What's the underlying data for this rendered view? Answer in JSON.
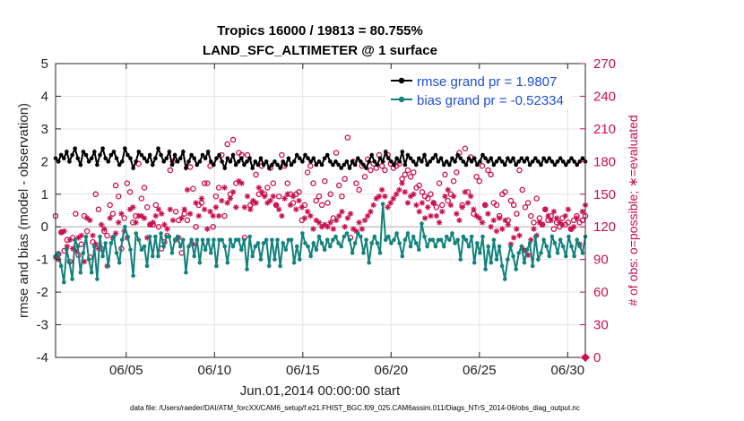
{
  "chart_data": {
    "type": "line",
    "title": "Tropics 16000 / 19813 = 80.755%",
    "subtitle": "LAND_SFC_ALTIMETER @ 1 surface",
    "xlabel": "Jun.01,2014 00:00:00 start",
    "ylabel": "rmse and bias (model - observation)",
    "y2label": "# of obs: o=possible; ∗=evaluated",
    "xlim": [
      1,
      31
    ],
    "ylim": [
      -4,
      5
    ],
    "y2lim": [
      0,
      270
    ],
    "x_ticks": [
      5,
      10,
      15,
      20,
      25,
      30
    ],
    "x_tick_labels": [
      "06/05",
      "06/10",
      "06/15",
      "06/20",
      "06/25",
      "06/30"
    ],
    "y_ticks": [
      -4,
      -3,
      -2,
      -1,
      0,
      1,
      2,
      3,
      4,
      5
    ],
    "y_tick_labels": [
      "-4",
      "-3",
      "-2",
      "-1",
      "0",
      "1",
      "2",
      "3",
      "4",
      "5"
    ],
    "y2_ticks": [
      0,
      30,
      60,
      90,
      120,
      150,
      180,
      210,
      240,
      270
    ],
    "y2_tick_labels": [
      "0",
      "30",
      "60",
      "90",
      "120",
      "150",
      "180",
      "210",
      "240",
      "270"
    ],
    "grid": true,
    "legend_position": "top-right",
    "series": [
      {
        "name": "rmse grand pr = 1.9807",
        "color": "#000000",
        "marker": "filled-circle",
        "axis": "left",
        "values": [
          2.1,
          2.0,
          2.2,
          2.1,
          2.3,
          2.0,
          2.2,
          2.4,
          2.1,
          1.9,
          2.3,
          2.2,
          2.0,
          2.1,
          2.3,
          1.9,
          2.2,
          2.4,
          2.1,
          2.0,
          2.2,
          2.3,
          2.1,
          1.9,
          2.0,
          2.4,
          2.2,
          2.1,
          1.8,
          2.0,
          2.3,
          2.2,
          2.1,
          2.0,
          2.2,
          1.9,
          2.1,
          2.4,
          2.2,
          2.0,
          2.1,
          2.3,
          1.9,
          2.2,
          2.0,
          2.1,
          2.3,
          1.8,
          2.0,
          2.2,
          2.1,
          1.9,
          2.0,
          2.2,
          2.1,
          2.3,
          2.0,
          1.9,
          2.1,
          2.2,
          2.0,
          1.8,
          2.1,
          2.0,
          2.2,
          1.9,
          2.0,
          2.1,
          1.9,
          2.0,
          2.1,
          1.8,
          2.0,
          1.9,
          2.1,
          1.9,
          2.0,
          1.8,
          1.9,
          2.0,
          1.9,
          1.8,
          2.0,
          1.9,
          2.1,
          1.9,
          2.0,
          2.2,
          2.1,
          2.0,
          2.2,
          2.1,
          2.0,
          2.1,
          1.9,
          2.0,
          1.9,
          2.1,
          2.2,
          2.0,
          1.9,
          2.0,
          1.9,
          1.8,
          1.9,
          2.0,
          1.8,
          2.0,
          1.9,
          2.1,
          2.0,
          1.9,
          1.8,
          2.0,
          2.2,
          2.0,
          1.9,
          2.1,
          2.0,
          2.3,
          2.1,
          2.0,
          1.9,
          2.1,
          2.0,
          2.3,
          1.9,
          2.2,
          2.1,
          2.0,
          1.9,
          2.1,
          2.0,
          2.2,
          1.9,
          2.0,
          2.1,
          2.2,
          2.0,
          2.1,
          1.9,
          2.0,
          1.9,
          2.1,
          2.0,
          2.2,
          2.1,
          2.0,
          1.9,
          2.1,
          2.0,
          2.1,
          1.9,
          2.0,
          2.2,
          2.1,
          2.0,
          2.1,
          1.9,
          2.0,
          2.1,
          2.0,
          1.9,
          2.1,
          2.0,
          2.1,
          1.9,
          2.0,
          2.1,
          2.0,
          2.1,
          1.9,
          2.0,
          2.1,
          2.0,
          1.9,
          2.1,
          2.0,
          2.1,
          2.0,
          1.9,
          2.0,
          2.1,
          2.0,
          1.9,
          2.0,
          2.1,
          2.0,
          1.9,
          2.0,
          2.1,
          2.0
        ]
      },
      {
        "name": "bias grand pr = -0.52334",
        "color": "#12827c",
        "marker": "filled-circle",
        "axis": "left",
        "values": [
          -0.9,
          -0.8,
          -1.2,
          -1.7,
          -0.7,
          -1.1,
          -1.6,
          -0.4,
          -0.6,
          -1.4,
          -0.8,
          -0.3,
          -1.0,
          -1.4,
          -0.6,
          -1.6,
          -0.3,
          -0.9,
          -0.5,
          -1.2,
          -0.5,
          -0.3,
          -0.8,
          -1.1,
          -0.4,
          0.0,
          -0.3,
          -0.7,
          -1.5,
          -0.2,
          -0.4,
          -0.7,
          -0.6,
          -1.2,
          -0.3,
          -0.9,
          -0.3,
          -0.9,
          -0.2,
          -0.6,
          -0.3,
          -0.3,
          -0.8,
          -0.4,
          -0.3,
          -0.6,
          -0.4,
          -1.4,
          -0.6,
          -0.4,
          -0.9,
          -0.4,
          -1.1,
          -0.4,
          -0.7,
          -0.4,
          -0.8,
          -0.4,
          -1.2,
          -0.4,
          -0.4,
          -0.6,
          -1.1,
          -0.4,
          -0.6,
          -0.4,
          -0.4,
          -0.7,
          -0.4,
          -1.3,
          -0.3,
          -0.9,
          -0.6,
          -0.5,
          -1.0,
          -0.5,
          -0.4,
          -1.2,
          -0.4,
          -1.0,
          -0.4,
          -1.2,
          -0.5,
          -0.7,
          -0.4,
          -0.4,
          -1.1,
          -0.6,
          -1.0,
          -0.2,
          -0.5,
          -0.6,
          -0.9,
          -0.5,
          -0.7,
          -0.3,
          -0.5,
          -0.7,
          -0.4,
          -0.6,
          -0.4,
          -0.3,
          -0.5,
          -0.6,
          -0.3,
          -0.2,
          -0.4,
          -0.8,
          -0.5,
          -0.2,
          -0.3,
          -0.8,
          -0.4,
          -1.1,
          -0.5,
          -0.3,
          -0.5,
          -0.8,
          0.7,
          -0.4,
          -0.3,
          -0.5,
          -0.4,
          -0.2,
          -0.5,
          -0.9,
          -0.4,
          -0.2,
          -0.6,
          -0.3,
          -0.5,
          -0.7,
          0.1,
          -0.3,
          -0.6,
          -0.4,
          -0.4,
          -0.6,
          -0.4,
          -0.4,
          -0.6,
          -0.3,
          -0.4,
          -0.2,
          -0.5,
          -0.4,
          -1.0,
          -0.3,
          -0.4,
          -0.6,
          -0.3,
          -1.1,
          -0.5,
          -0.8,
          -0.3,
          -1.3,
          -0.6,
          -1.1,
          -0.4,
          -1.0,
          -0.6,
          -1.2,
          -1.6,
          -1.0,
          -0.6,
          -0.9,
          -1.3,
          -0.8,
          -0.6,
          -1.1,
          -0.7,
          -0.5,
          -1.2,
          -0.3,
          -1.0,
          -0.8,
          -0.4,
          -0.6,
          -0.9,
          -0.3,
          -0.5,
          -0.8,
          -0.4,
          -0.6,
          -0.9,
          -0.3,
          -0.6,
          -0.9,
          -0.4,
          -0.6,
          -0.8,
          -0.3
        ]
      },
      {
        "name": "possible",
        "color": "#c8104e",
        "marker": "open-circle",
        "axis": "right",
        "values": [
          130,
          95,
          115,
          98,
          108,
          88,
          110,
          132,
          94,
          104,
          130,
          116,
          92,
          106,
          150,
          136,
          100,
          116,
          112,
          140,
          132,
          158,
          148,
          100,
          128,
          160,
          152,
          124,
          130,
          178,
          146,
          156,
          138,
          122,
          122,
          140,
          120,
          100,
          106,
          112,
          172,
          180,
          134,
          126,
          96,
          132,
          126,
          175,
          155,
          120,
          140,
          142,
          160,
          160,
          176,
          120,
          148,
          156,
          186,
          130,
          196,
          150,
          200,
          160,
          188,
          186,
          110,
          186,
          140,
          142,
          168,
          150,
          176,
          150,
          156,
          174,
          160,
          140,
          148,
          186,
          176,
          160,
          150,
          142,
          150,
          152,
          126,
          140,
          170,
          176,
          160,
          144,
          148,
          140,
          162,
          142,
          150,
          128,
          188,
          158,
          148,
          164,
          202,
          110,
          180,
          160,
          154,
          176,
          166,
          182,
          172,
          178,
          174,
          186,
          176,
          172,
          186,
          178,
          174,
          176,
          178,
          164,
          168,
          172,
          166,
          170,
          156,
          158,
          152,
          148,
          146,
          150,
          142,
          138,
          160,
          140,
          168,
          144,
          150,
          162,
          170,
          188,
          140,
          192,
          152,
          184,
          132,
          166,
          162,
          176,
          140,
          172,
          168,
          142,
          140,
          130,
          150,
          152,
          126,
          144,
          140,
          132,
          172,
          154,
          138,
          142,
          130,
          124,
          146,
          128,
          122,
          136,
          126,
          130,
          118,
          124,
          120,
          128,
          122,
          124,
          118,
          126,
          130,
          124,
          126,
          130
        ]
      },
      {
        "name": "evaluated",
        "color": "#c8104e",
        "marker": "asterisk",
        "axis": "right",
        "values": [
          92,
          90,
          115,
          116,
          102,
          108,
          100,
          98,
          110,
          112,
          88,
          128,
          126,
          112,
          104,
          100,
          122,
          118,
          84,
          128,
          110,
          114,
          124,
          132,
          116,
          110,
          136,
          138,
          124,
          130,
          130,
          128,
          110,
          122,
          124,
          130,
          136,
          132,
          122,
          118,
          136,
          126,
          108,
          110,
          128,
          136,
          154,
          132,
          104,
          142,
          130,
          146,
          136,
          118,
          134,
          130,
          138,
          130,
          144,
          156,
          142,
          146,
          152,
          138,
          162,
          160,
          138,
          148,
          136,
          144,
          142,
          156,
          152,
          148,
          142,
          144,
          148,
          140,
          136,
          130,
          146,
          150,
          140,
          148,
          136,
          144,
          138,
          128,
          134,
          130,
          118,
          126,
          124,
          120,
          122,
          120,
          124,
          118,
          126,
          130,
          134,
          120,
          128,
          132,
          118,
          116,
          124,
          118,
          126,
          130,
          134,
          140,
          146,
          148,
          154,
          148,
          138,
          142,
          146,
          150,
          154,
          160,
          152,
          142,
          148,
          150,
          140,
          134,
          142,
          128,
          138,
          130,
          142,
          130,
          124,
          134,
          148,
          154,
          140,
          148,
          132,
          126,
          138,
          152,
          142,
          148,
          136,
          130,
          128,
          124,
          140,
          132,
          120,
          126,
          116,
          128,
          118,
          126,
          122,
          104,
          110,
          118,
          112,
          100,
          98,
          94,
          108,
          118,
          112,
          124,
          122,
          136,
          130,
          126,
          134,
          128,
          124,
          122,
          130,
          136,
          118,
          120,
          128,
          104,
          134,
          140
        ]
      }
    ]
  },
  "legend": {
    "rmse_label": "rmse grand pr = 1.9807",
    "bias_label": "bias grand pr = -0.52334"
  },
  "footer": {
    "text": "data file: /Users/raeder/DAI/ATM_forcXX/CAM6_setup/f.e21.FHIST_BGC.f09_025.CAM6assim.011/Diags_NTrS_2014-06/obs_diag_output.nc"
  }
}
